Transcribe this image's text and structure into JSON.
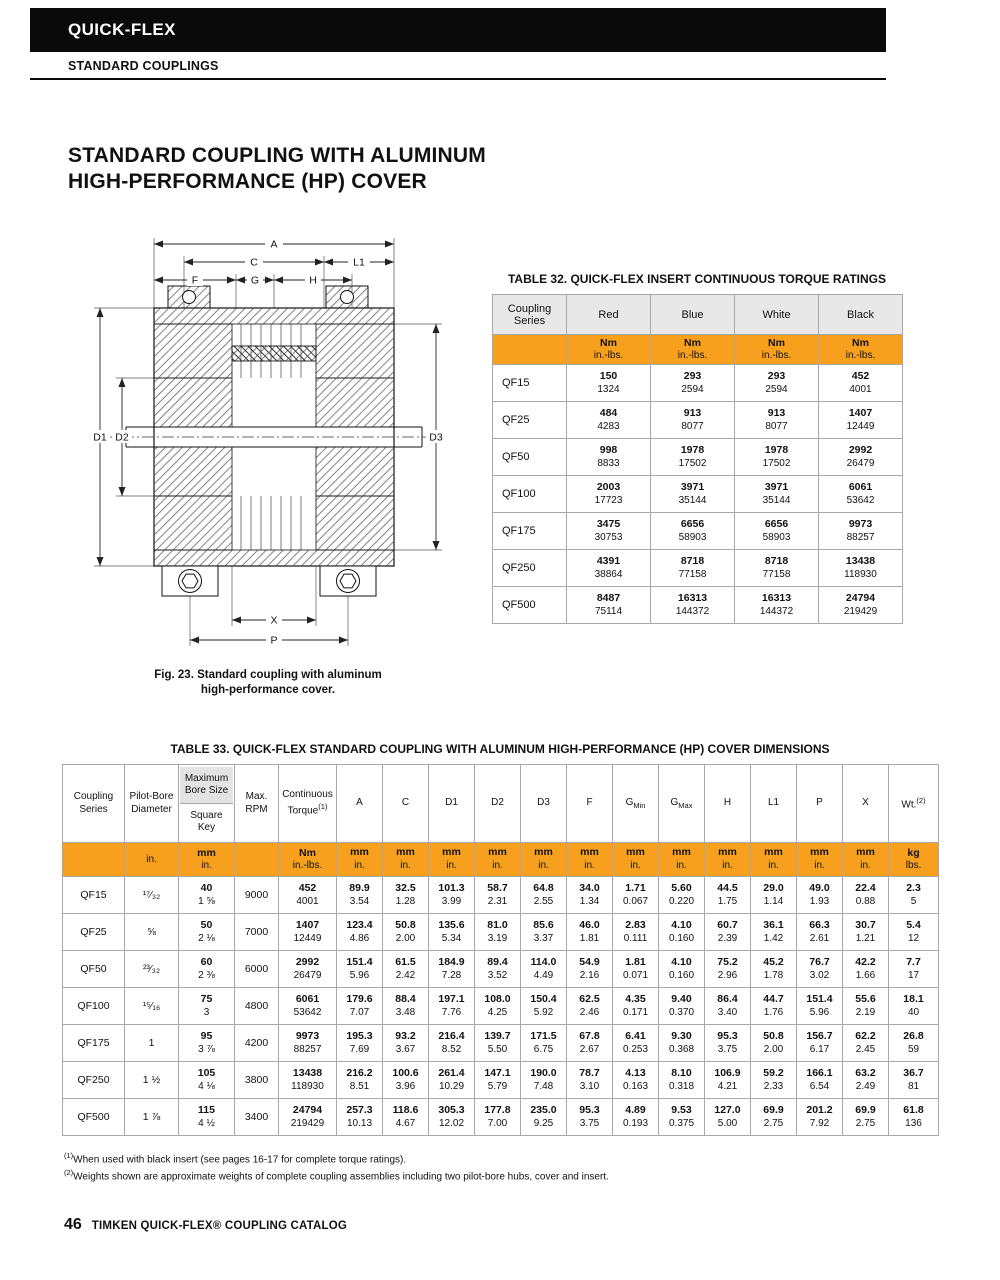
{
  "colors": {
    "accent_orange": "#F6A01E",
    "header_gray": "#E8E8E8",
    "bar_black": "#0A0A0A"
  },
  "page": {
    "brand": "QUICK-FLEX",
    "category": "STANDARD COUPLINGS",
    "title_line1": "STANDARD COUPLING WITH ALUMINUM",
    "title_line2": "HIGH-PERFORMANCE (HP) COVER",
    "footnote1_sup": "(1)",
    "footnote1": "When used with black insert (see pages 16-17 for complete torque ratings).",
    "footnote2_sup": "(2)",
    "footnote2": "Weights shown are approximate weights of complete coupling assemblies including two pilot-bore hubs, cover and insert.",
    "page_number": "46",
    "footer_text": "TIMKEN QUICK-FLEX® COUPLING CATALOG"
  },
  "figure": {
    "caption_line1": "Fig. 23. Standard coupling with aluminum",
    "caption_line2": "high-performance cover.",
    "dims": {
      "a": "A",
      "c": "C",
      "l1": "L1",
      "f": "F",
      "g": "G",
      "h": "H",
      "d1": "D1",
      "d2": "D2",
      "d3": "D3",
      "x": "X",
      "p": "P"
    }
  },
  "table32": {
    "title": "TABLE 32. QUICK-FLEX INSERT CONTINUOUS TORQUE RATINGS",
    "series_header": "Coupling Series",
    "color_headers": [
      "Red",
      "Blue",
      "White",
      "Black"
    ],
    "unit_top": "Nm",
    "unit_bottom": "in.-lbs.",
    "rows": [
      {
        "series": "QF15",
        "values": [
          [
            "150",
            "1324"
          ],
          [
            "293",
            "2594"
          ],
          [
            "293",
            "2594"
          ],
          [
            "452",
            "4001"
          ]
        ]
      },
      {
        "series": "QF25",
        "values": [
          [
            "484",
            "4283"
          ],
          [
            "913",
            "8077"
          ],
          [
            "913",
            "8077"
          ],
          [
            "1407",
            "12449"
          ]
        ]
      },
      {
        "series": "QF50",
        "values": [
          [
            "998",
            "8833"
          ],
          [
            "1978",
            "17502"
          ],
          [
            "1978",
            "17502"
          ],
          [
            "2992",
            "26479"
          ]
        ]
      },
      {
        "series": "QF100",
        "values": [
          [
            "2003",
            "17723"
          ],
          [
            "3971",
            "35144"
          ],
          [
            "3971",
            "35144"
          ],
          [
            "6061",
            "53642"
          ]
        ]
      },
      {
        "series": "QF175",
        "values": [
          [
            "3475",
            "30753"
          ],
          [
            "6656",
            "58903"
          ],
          [
            "6656",
            "58903"
          ],
          [
            "9973",
            "88257"
          ]
        ]
      },
      {
        "series": "QF250",
        "values": [
          [
            "4391",
            "38864"
          ],
          [
            "8718",
            "77158"
          ],
          [
            "8718",
            "77158"
          ],
          [
            "13438",
            "118930"
          ]
        ]
      },
      {
        "series": "QF500",
        "values": [
          [
            "8487",
            "75114"
          ],
          [
            "16313",
            "144372"
          ],
          [
            "16313",
            "144372"
          ],
          [
            "24794",
            "219429"
          ]
        ]
      }
    ]
  },
  "table33": {
    "title": "TABLE 33. QUICK-FLEX STANDARD COUPLING WITH ALUMINUM HIGH-PERFORMANCE (HP) COVER DIMENSIONS",
    "headers": {
      "series": "Coupling Series",
      "pilot_bore": "Pilot-Bore Diameter",
      "max_bore_top": "Maximum Bore Size",
      "max_bore_bottom": "Square Key",
      "rpm": "Max. RPM",
      "torque": "Continuous Torque",
      "torque_sup": "(1)",
      "wt": "Wt.",
      "wt_sup": "(2)"
    },
    "dim_headers": [
      {
        "label": "A"
      },
      {
        "label": "C"
      },
      {
        "label": "D1"
      },
      {
        "label": "D2"
      },
      {
        "label": "D3"
      },
      {
        "label": "F"
      },
      {
        "label": "G",
        "sub": "Min"
      },
      {
        "label": "G",
        "sub": "Max"
      },
      {
        "label": "H"
      },
      {
        "label": "L1"
      },
      {
        "label": "P"
      },
      {
        "label": "X"
      }
    ],
    "units": {
      "pilot_bore": "in.",
      "mm": "mm",
      "in": "in.",
      "nm": "Nm",
      "inlbs": "in.-lbs.",
      "kg": "kg",
      "lbs": "lbs."
    },
    "rows": [
      {
        "series": "QF15",
        "pilot_bore": "¹⁷⁄₃₂",
        "max_bore": [
          "40",
          "1 ⅝"
        ],
        "rpm": "9000",
        "torque": [
          "452",
          "4001"
        ],
        "dims": [
          [
            "89.9",
            "3.54"
          ],
          [
            "32.5",
            "1.28"
          ],
          [
            "101.3",
            "3.99"
          ],
          [
            "58.7",
            "2.31"
          ],
          [
            "64.8",
            "2.55"
          ],
          [
            "34.0",
            "1.34"
          ],
          [
            "1.71",
            "0.067"
          ],
          [
            "5.60",
            "0.220"
          ],
          [
            "44.5",
            "1.75"
          ],
          [
            "29.0",
            "1.14"
          ],
          [
            "49.0",
            "1.93"
          ],
          [
            "22.4",
            "0.88"
          ]
        ],
        "wt": [
          "2.3",
          "5"
        ]
      },
      {
        "series": "QF25",
        "pilot_bore": "⅝",
        "max_bore": [
          "50",
          "2 ⅛"
        ],
        "rpm": "7000",
        "torque": [
          "1407",
          "12449"
        ],
        "dims": [
          [
            "123.4",
            "4.86"
          ],
          [
            "50.8",
            "2.00"
          ],
          [
            "135.6",
            "5.34"
          ],
          [
            "81.0",
            "3.19"
          ],
          [
            "85.6",
            "3.37"
          ],
          [
            "46.0",
            "1.81"
          ],
          [
            "2.83",
            "0.111"
          ],
          [
            "4.10",
            "0.160"
          ],
          [
            "60.7",
            "2.39"
          ],
          [
            "36.1",
            "1.42"
          ],
          [
            "66.3",
            "2.61"
          ],
          [
            "30.7",
            "1.21"
          ]
        ],
        "wt": [
          "5.4",
          "12"
        ]
      },
      {
        "series": "QF50",
        "pilot_bore": "²³⁄₃₂",
        "max_bore": [
          "60",
          "2 ⅜"
        ],
        "rpm": "6000",
        "torque": [
          "2992",
          "26479"
        ],
        "dims": [
          [
            "151.4",
            "5.96"
          ],
          [
            "61.5",
            "2.42"
          ],
          [
            "184.9",
            "7.28"
          ],
          [
            "89.4",
            "3.52"
          ],
          [
            "114.0",
            "4.49"
          ],
          [
            "54.9",
            "2.16"
          ],
          [
            "1.81",
            "0.071"
          ],
          [
            "4.10",
            "0.160"
          ],
          [
            "75.2",
            "2.96"
          ],
          [
            "45.2",
            "1.78"
          ],
          [
            "76.7",
            "3.02"
          ],
          [
            "42.2",
            "1.66"
          ]
        ],
        "wt": [
          "7.7",
          "17"
        ]
      },
      {
        "series": "QF100",
        "pilot_bore": "¹⁵⁄₁₆",
        "max_bore": [
          "75",
          "3"
        ],
        "rpm": "4800",
        "torque": [
          "6061",
          "53642"
        ],
        "dims": [
          [
            "179.6",
            "7.07"
          ],
          [
            "88.4",
            "3.48"
          ],
          [
            "197.1",
            "7.76"
          ],
          [
            "108.0",
            "4.25"
          ],
          [
            "150.4",
            "5.92"
          ],
          [
            "62.5",
            "2.46"
          ],
          [
            "4.35",
            "0.171"
          ],
          [
            "9.40",
            "0.370"
          ],
          [
            "86.4",
            "3.40"
          ],
          [
            "44.7",
            "1.76"
          ],
          [
            "151.4",
            "5.96"
          ],
          [
            "55.6",
            "2.19"
          ]
        ],
        "wt": [
          "18.1",
          "40"
        ]
      },
      {
        "series": "QF175",
        "pilot_bore": "1",
        "max_bore": [
          "95",
          "3 ⅞"
        ],
        "rpm": "4200",
        "torque": [
          "9973",
          "88257"
        ],
        "dims": [
          [
            "195.3",
            "7.69"
          ],
          [
            "93.2",
            "3.67"
          ],
          [
            "216.4",
            "8.52"
          ],
          [
            "139.7",
            "5.50"
          ],
          [
            "171.5",
            "6.75"
          ],
          [
            "67.8",
            "2.67"
          ],
          [
            "6.41",
            "0.253"
          ],
          [
            "9.30",
            "0.368"
          ],
          [
            "95.3",
            "3.75"
          ],
          [
            "50.8",
            "2.00"
          ],
          [
            "156.7",
            "6.17"
          ],
          [
            "62.2",
            "2.45"
          ]
        ],
        "wt": [
          "26.8",
          "59"
        ]
      },
      {
        "series": "QF250",
        "pilot_bore": "1 ½",
        "max_bore": [
          "105",
          "4 ⅛"
        ],
        "rpm": "3800",
        "torque": [
          "13438",
          "118930"
        ],
        "dims": [
          [
            "216.2",
            "8.51"
          ],
          [
            "100.6",
            "3.96"
          ],
          [
            "261.4",
            "10.29"
          ],
          [
            "147.1",
            "5.79"
          ],
          [
            "190.0",
            "7.48"
          ],
          [
            "78.7",
            "3.10"
          ],
          [
            "4.13",
            "0.163"
          ],
          [
            "8.10",
            "0.318"
          ],
          [
            "106.9",
            "4.21"
          ],
          [
            "59.2",
            "2.33"
          ],
          [
            "166.1",
            "6.54"
          ],
          [
            "63.2",
            "2.49"
          ]
        ],
        "wt": [
          "36.7",
          "81"
        ]
      },
      {
        "series": "QF500",
        "pilot_bore": "1 ⅞",
        "max_bore": [
          "115",
          "4 ½"
        ],
        "rpm": "3400",
        "torque": [
          "24794",
          "219429"
        ],
        "dims": [
          [
            "257.3",
            "10.13"
          ],
          [
            "118.6",
            "4.67"
          ],
          [
            "305.3",
            "12.02"
          ],
          [
            "177.8",
            "7.00"
          ],
          [
            "235.0",
            "9.25"
          ],
          [
            "95.3",
            "3.75"
          ],
          [
            "4.89",
            "0.193"
          ],
          [
            "9.53",
            "0.375"
          ],
          [
            "127.0",
            "5.00"
          ],
          [
            "69.9",
            "2.75"
          ],
          [
            "201.2",
            "7.92"
          ],
          [
            "69.9",
            "2.75"
          ]
        ],
        "wt": [
          "61.8",
          "136"
        ]
      }
    ]
  }
}
